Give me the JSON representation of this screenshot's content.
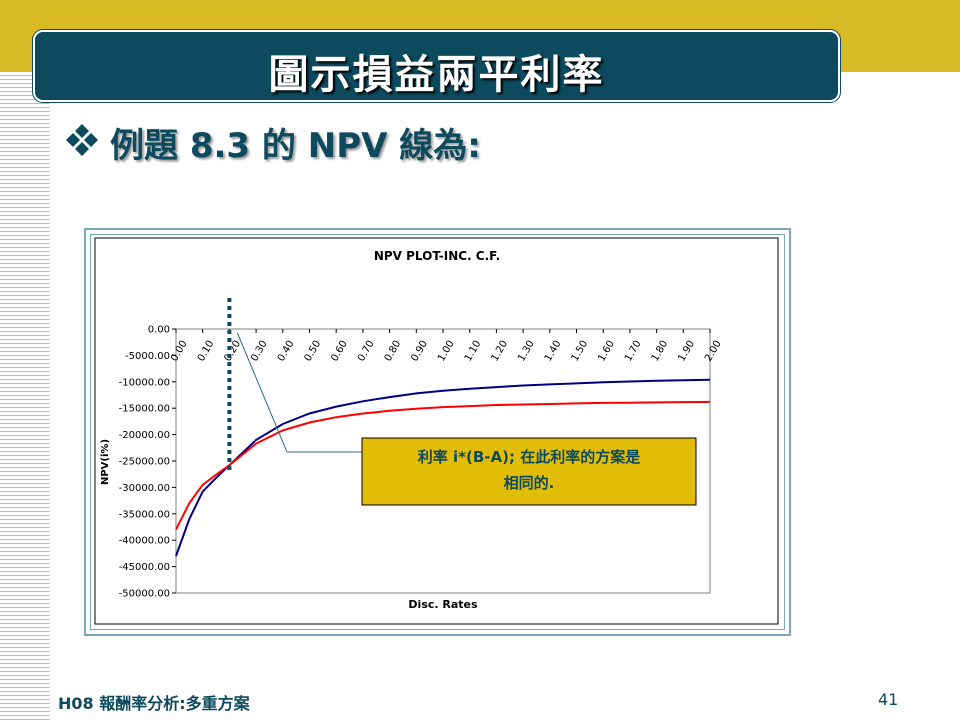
{
  "slide": {
    "title": "圖示損益兩平利率",
    "heading": "例題 8.3 的 NPV 線為:",
    "footer_left": "H08 報酬率分析:多重方案",
    "page_number": "41",
    "callout": [
      "利率 i*(B-A); 在此利率的方案是",
      "相同的."
    ],
    "bullet_icon": "four-diamond-bullet-icon",
    "colors": {
      "banner": "#0d4a5e",
      "gold": "#d8bb24",
      "callout_bg": "#e2bd08"
    }
  },
  "chart_data": {
    "type": "line",
    "title": "NPV PLOT-INC. C.F.",
    "xlabel": "Disc. Rates",
    "ylabel": "NPV(i%)",
    "xlim": [
      0,
      2.0
    ],
    "ylim": [
      -50000,
      0
    ],
    "x_tick_labels": [
      "0.00",
      "0.10",
      "0.20",
      "0.30",
      "0.40",
      "0.50",
      "0.60",
      "0.70",
      "0.80",
      "0.90",
      "1.00",
      "1.10",
      "1.20",
      "1.30",
      "1.40",
      "1.50",
      "1.60",
      "1.70",
      "1.80",
      "1.90",
      "2.00"
    ],
    "y_tick_labels": [
      "0.00",
      "-5000.00",
      "-10000.00",
      "-15000.00",
      "-20000.00",
      "-25000.00",
      "-30000.00",
      "-35000.00",
      "-40000.00",
      "-45000.00",
      "-50000.00"
    ],
    "grid": false,
    "break_even_rate": 0.2,
    "series": [
      {
        "color": "#000080",
        "x": [
          0.0,
          0.05,
          0.1,
          0.15,
          0.2,
          0.3,
          0.4,
          0.5,
          0.6,
          0.7,
          0.8,
          0.9,
          1.0,
          1.1,
          1.2,
          1.3,
          1.4,
          1.5,
          1.6,
          1.7,
          1.8,
          1.9,
          2.0
        ],
        "values": [
          -43000,
          -36000,
          -30800,
          -28200,
          -25800,
          -21000,
          -18000,
          -16000,
          -14700,
          -13700,
          -12900,
          -12200,
          -11700,
          -11300,
          -11000,
          -10700,
          -10500,
          -10300,
          -10100,
          -9950,
          -9800,
          -9700,
          -9600
        ]
      },
      {
        "color": "#ff0000",
        "x": [
          0.0,
          0.05,
          0.1,
          0.15,
          0.2,
          0.3,
          0.4,
          0.5,
          0.6,
          0.7,
          0.8,
          0.9,
          1.0,
          1.1,
          1.2,
          1.3,
          1.4,
          1.5,
          1.6,
          1.7,
          1.8,
          1.9,
          2.0
        ],
        "values": [
          -38000,
          -33000,
          -29500,
          -27600,
          -25800,
          -21700,
          -19200,
          -17700,
          -16700,
          -16000,
          -15500,
          -15100,
          -14800,
          -14600,
          -14400,
          -14300,
          -14200,
          -14100,
          -14000,
          -13950,
          -13900,
          -13850,
          -13800
        ]
      }
    ]
  }
}
